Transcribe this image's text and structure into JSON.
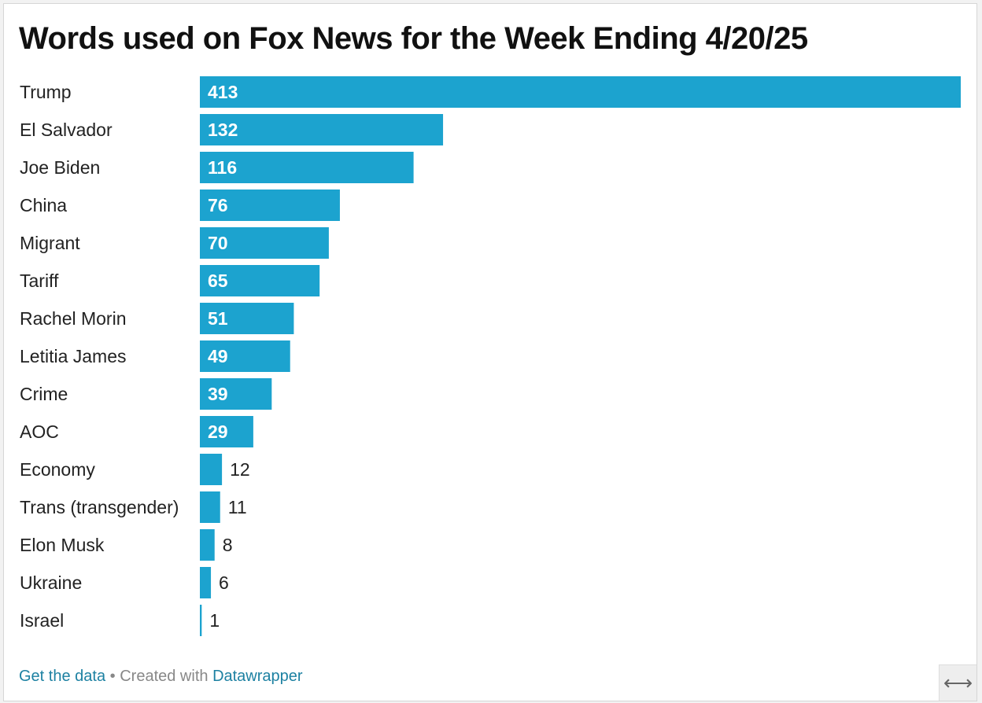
{
  "chart_data": {
    "type": "bar",
    "orientation": "horizontal",
    "title": "Words used on Fox News for the Week Ending 4/20/25",
    "categories": [
      "Trump",
      "El Salvador",
      "Joe Biden",
      "China",
      "Migrant",
      "Tariff",
      "Rachel Morin",
      "Letitia James",
      "Crime",
      "AOC",
      "Economy",
      "Trans (transgender)",
      "Elon Musk",
      "Ukraine",
      "Israel"
    ],
    "values": [
      413,
      132,
      116,
      76,
      70,
      65,
      51,
      49,
      39,
      29,
      12,
      11,
      8,
      6,
      1
    ],
    "bar_color": "#1ca3cf",
    "xlim": [
      0,
      413
    ],
    "grid": false,
    "legend": "none"
  },
  "footer": {
    "get_data": "Get the data",
    "separator": "•",
    "created_with": "Created with",
    "datawrapper": "Datawrapper"
  },
  "expand_icon": "⟷"
}
